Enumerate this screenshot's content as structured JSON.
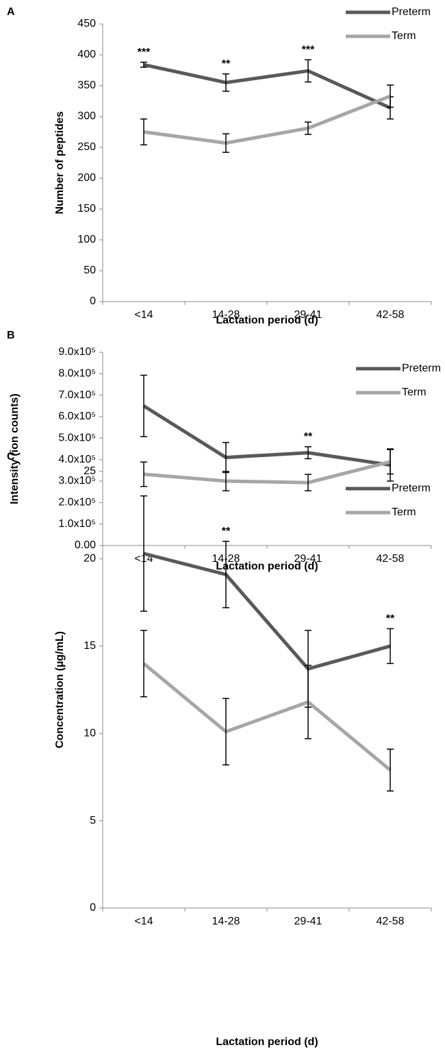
{
  "chart_data": [
    {
      "type": "line",
      "label": "A",
      "ylabel": "Number of peptides",
      "xlabel": "Lactation period (d)",
      "categories": [
        "<14",
        "14-28",
        "29-41",
        "42-58"
      ],
      "series": [
        {
          "name": "Preterm",
          "color": "#595959",
          "values": [
            384,
            355,
            374,
            314
          ],
          "errors": [
            4,
            14,
            18,
            18
          ]
        },
        {
          "name": "Term",
          "color": "#a6a6a6",
          "values": [
            275,
            257,
            281,
            333
          ],
          "errors": [
            21,
            15,
            10,
            18
          ]
        }
      ],
      "annotations": [
        {
          "x": "<14",
          "text": "***"
        },
        {
          "x": "14-28",
          "text": "**"
        },
        {
          "x": "29-41",
          "text": "***"
        }
      ],
      "ylim": [
        0,
        450
      ],
      "yticks": [
        0,
        50,
        100,
        150,
        200,
        250,
        300,
        350,
        400,
        450
      ],
      "legend": "top-right"
    },
    {
      "type": "line",
      "label": "B",
      "ylabel": "Intensity (ion counts)",
      "xlabel": "Lactation period (d)",
      "categories": [
        "<14",
        "14-28",
        "29-41",
        "42-58"
      ],
      "series": [
        {
          "name": "Preterm",
          "color": "#595959",
          "values": [
            650000,
            410000,
            432000,
            375000
          ],
          "errors": [
            143000,
            70000,
            28000,
            75000
          ]
        },
        {
          "name": "Term",
          "color": "#a6a6a6",
          "values": [
            332000,
            300000,
            293000,
            390000
          ],
          "errors": [
            57000,
            45000,
            38000,
            57000
          ]
        }
      ],
      "annotations": [
        {
          "x": "29-41",
          "text": "**"
        }
      ],
      "ylim": [
        0,
        900000
      ],
      "yticks": [
        {
          "value": 0,
          "label": "0.00"
        },
        {
          "value": 100000,
          "label": "1.0x10⁵"
        },
        {
          "value": 200000,
          "label": "2.0x10⁵"
        },
        {
          "value": 300000,
          "label": "3.0x10⁵"
        },
        {
          "value": 400000,
          "label": "4.0x10⁵"
        },
        {
          "value": 500000,
          "label": "5.0x10⁵"
        },
        {
          "value": 600000,
          "label": "6.0x10⁵"
        },
        {
          "value": 700000,
          "label": "7.0x10⁵"
        },
        {
          "value": 800000,
          "label": "8.0x10⁵"
        },
        {
          "value": 900000,
          "label": "9.0x10⁵"
        }
      ],
      "legend": "top-right"
    },
    {
      "type": "line",
      "label": "C",
      "ylabel": "Concentration (µg/mL)",
      "xlabel": "Lactation period (d)",
      "categories": [
        "<14",
        "14-28",
        "29-41",
        "42-58"
      ],
      "series": [
        {
          "name": "Preterm",
          "color": "#595959",
          "values": [
            20.3,
            19.1,
            13.7,
            15.0
          ],
          "errors": [
            3.3,
            1.9,
            2.2,
            1.0
          ]
        },
        {
          "name": "Term",
          "color": "#a6a6a6",
          "values": [
            14.0,
            10.1,
            11.8,
            7.9
          ],
          "errors": [
            1.9,
            1.9,
            2.1,
            1.2
          ]
        }
      ],
      "annotations": [
        {
          "x": "14-28",
          "text": "**"
        },
        {
          "x": "42-58",
          "text": "**"
        }
      ],
      "ylim": [
        0,
        25
      ],
      "yticks": [
        0,
        5,
        10,
        15,
        20,
        25
      ],
      "legend": "top-right"
    }
  ]
}
